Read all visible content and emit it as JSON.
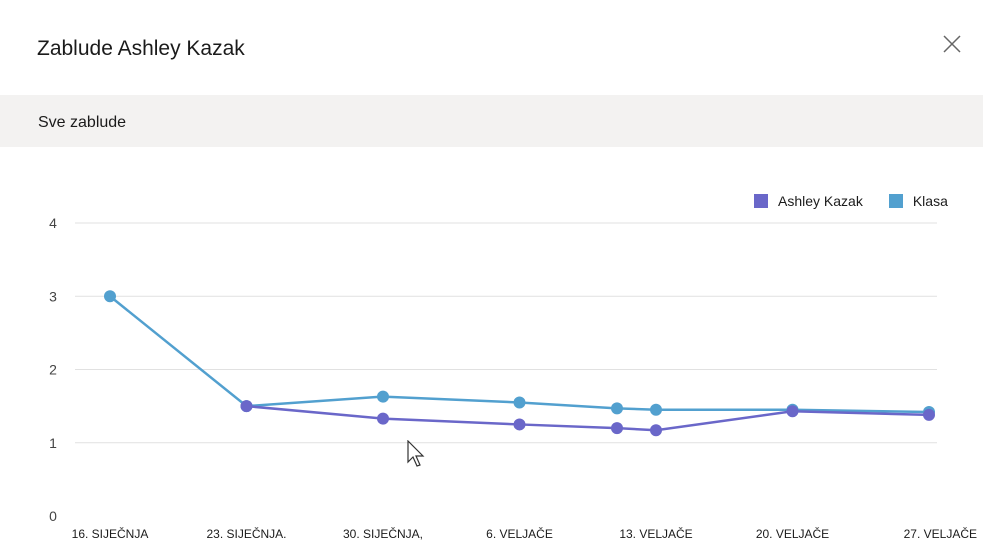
{
  "dialog": {
    "title": "Zablude Ashley Kazak",
    "subtitle": "Sve zablude",
    "close_icon": "close-icon"
  },
  "colors": {
    "student": "#6a67c9",
    "class": "#52a0cf",
    "grid": "#e1e1e1",
    "subbar": "#f3f2f1"
  },
  "chart_data": {
    "type": "line",
    "title": "",
    "xlabel": "",
    "ylabel": "",
    "ylim": [
      0,
      4
    ],
    "yticks": [
      0,
      1,
      2,
      3,
      4
    ],
    "grid": true,
    "legend_position": "top-right",
    "x_tick_labels": [
      "16. SIJEČNJA",
      "23. SIJEČNJA.",
      "30. SIJEČNJA,",
      "6. VELJAČE",
      "13. VELJAČE",
      "20. VELJAČE",
      "27. VELJAČE"
    ],
    "x": [
      0,
      7,
      14,
      21,
      26,
      28,
      35,
      42
    ],
    "series": [
      {
        "name": "Ashley Kazak",
        "color": "#6a67c9",
        "x": [
          7,
          14,
          21,
          26,
          28,
          35,
          42
        ],
        "values": [
          1.5,
          1.33,
          1.25,
          1.2,
          1.17,
          1.43,
          1.38
        ]
      },
      {
        "name": "Klasa",
        "color": "#52a0cf",
        "x": [
          0,
          7,
          14,
          21,
          26,
          28,
          35,
          42
        ],
        "values": [
          3.0,
          1.5,
          1.63,
          1.55,
          1.47,
          1.45,
          1.45,
          1.42
        ]
      }
    ]
  }
}
